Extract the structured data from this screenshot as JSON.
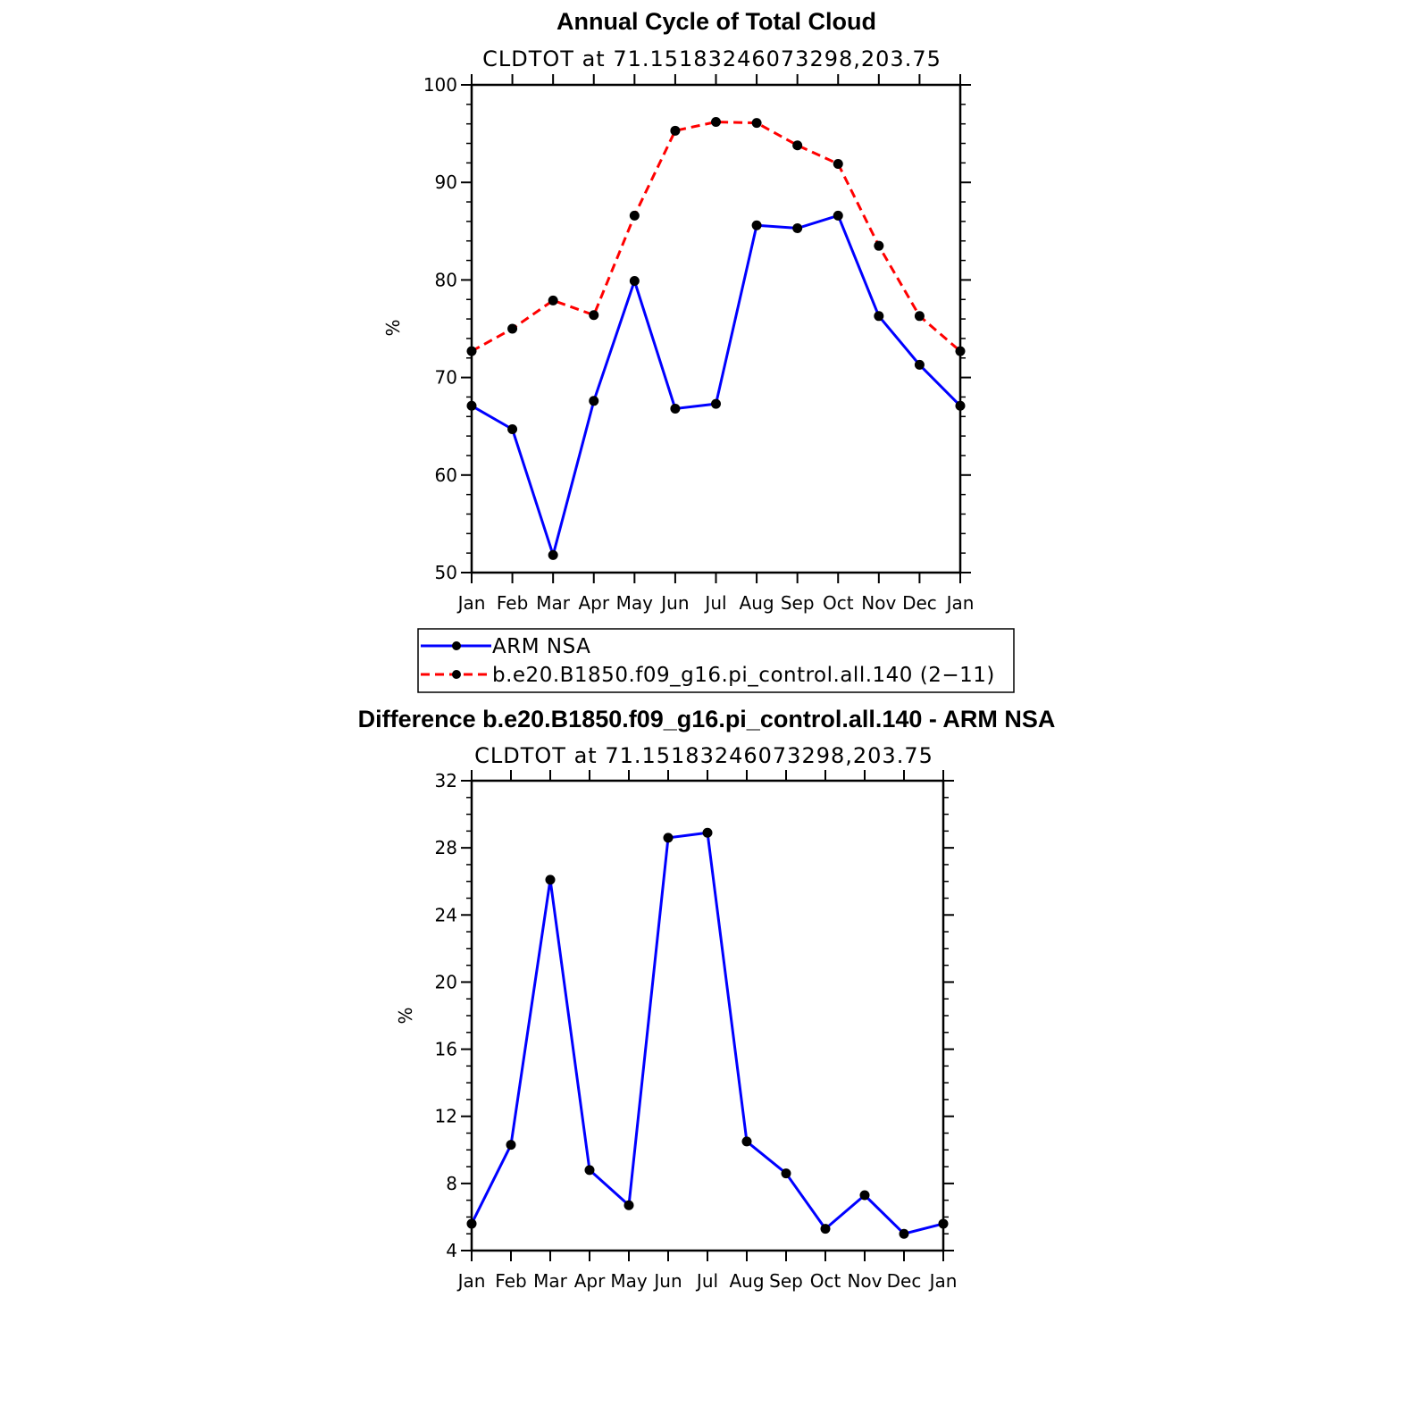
{
  "chart_data": [
    {
      "type": "line",
      "title": "Annual Cycle of Total Cloud",
      "subtitle": "CLDTOT at 71.15183246073298,203.75",
      "ylabel": "%",
      "xlabel": "",
      "ylim": [
        50,
        100
      ],
      "yticks": [
        50,
        60,
        70,
        80,
        90,
        100
      ],
      "categories": [
        "Jan",
        "Feb",
        "Mar",
        "Apr",
        "May",
        "Jun",
        "Jul",
        "Aug",
        "Sep",
        "Oct",
        "Nov",
        "Dec",
        "Jan"
      ],
      "series": [
        {
          "name": "ARM NSA",
          "color": "#0000ff",
          "dash": "solid",
          "values": [
            67.1,
            64.7,
            51.8,
            67.6,
            79.9,
            66.8,
            67.3,
            85.6,
            85.3,
            86.6,
            76.3,
            71.3,
            67.1
          ]
        },
        {
          "name": "b.e20.B1850.f09_g16.pi_control.all.140 (2−11)",
          "color": "#ff0000",
          "dash": "dashed",
          "values": [
            72.7,
            75.0,
            77.9,
            76.4,
            86.6,
            95.3,
            96.2,
            96.1,
            93.8,
            91.9,
            83.5,
            76.3,
            72.7
          ]
        }
      ],
      "legend": "below"
    },
    {
      "type": "line",
      "title": "Difference b.e20.B1850.f09_g16.pi_control.all.140 - ARM NSA",
      "subtitle": "CLDTOT at 71.15183246073298,203.75",
      "ylabel": "%",
      "xlabel": "",
      "ylim": [
        4,
        32
      ],
      "yticks": [
        4,
        8,
        12,
        16,
        20,
        24,
        28,
        32
      ],
      "categories": [
        "Jan",
        "Feb",
        "Mar",
        "Apr",
        "May",
        "Jun",
        "Jul",
        "Aug",
        "Sep",
        "Oct",
        "Nov",
        "Dec",
        "Jan"
      ],
      "series": [
        {
          "color": "#0000ff",
          "dash": "solid",
          "values": [
            5.6,
            10.3,
            26.1,
            8.8,
            6.7,
            28.6,
            28.9,
            10.5,
            8.6,
            5.3,
            7.3,
            5.0,
            5.6
          ]
        }
      ]
    }
  ]
}
